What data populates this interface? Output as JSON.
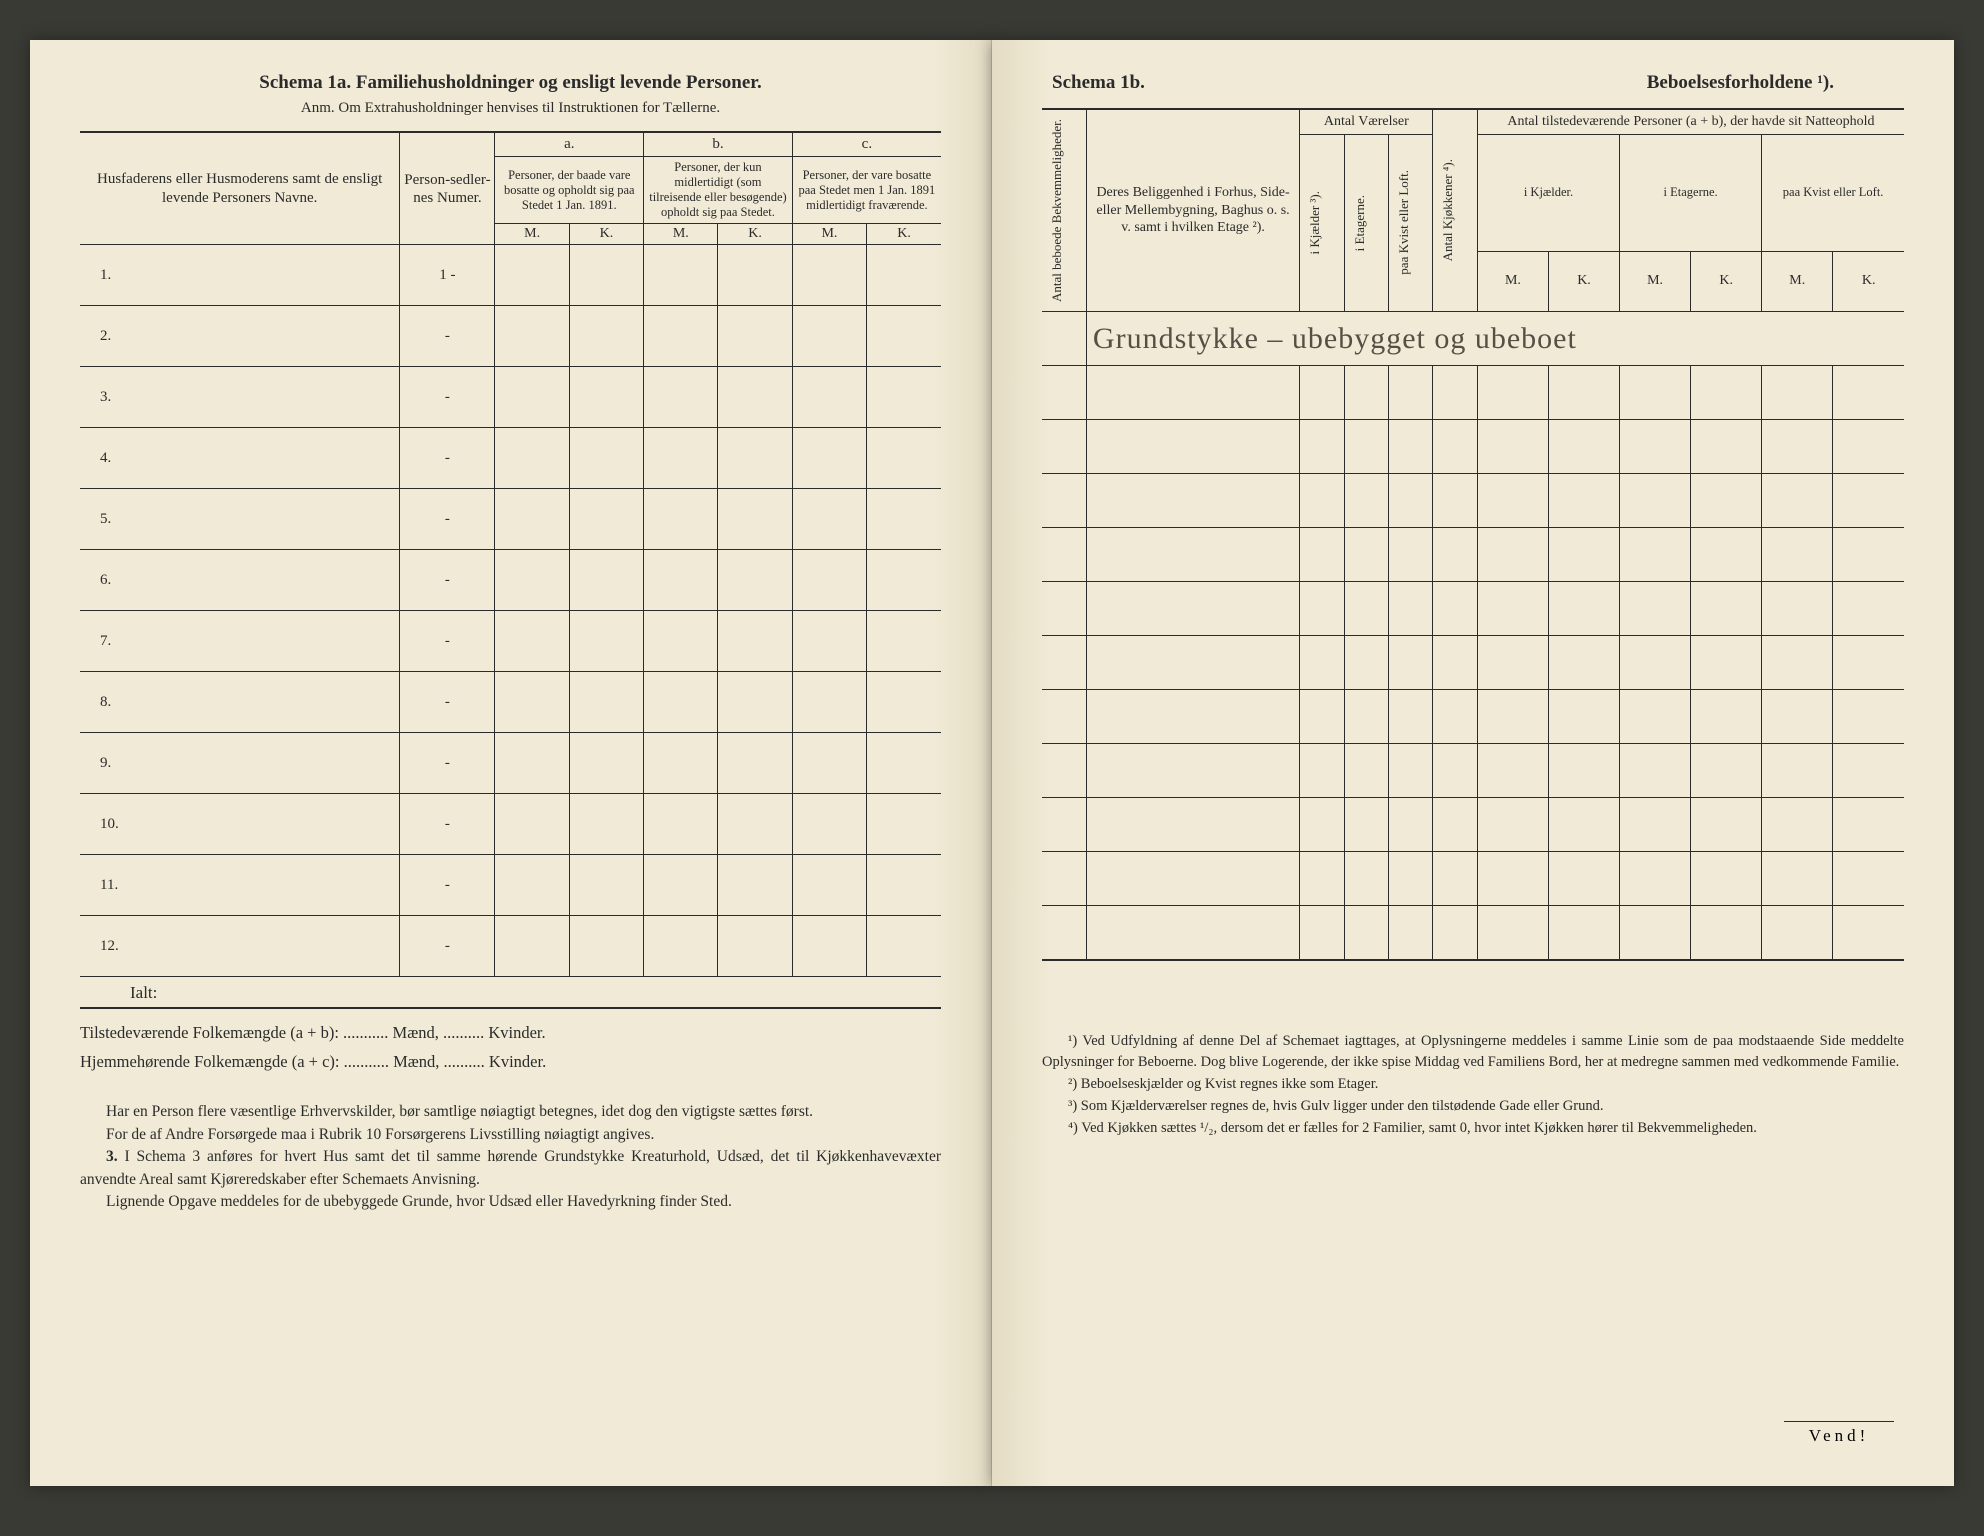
{
  "left": {
    "titleSchema": "Schema 1a.",
    "titleRest": "Familiehusholdninger og ensligt levende Personer.",
    "subtitle": "Anm. Om Extrahusholdninger henvises til Instruktionen for Tællerne.",
    "header": {
      "names": "Husfaderens eller Husmoderens samt de ensligt levende Personers Navne.",
      "numer": "Person-sedler-nes Numer.",
      "a": "a.",
      "b": "b.",
      "c": "c.",
      "atext": "Personer, der baade vare bosatte og opholdt sig paa Stedet 1 Jan. 1891.",
      "btext": "Personer, der kun midlertidigt (som tilreisende eller besøgende) opholdt sig paa Stedet.",
      "ctext": "Personer, der vare bosatte paa Stedet men 1 Jan. 1891 midlertidigt fraværende.",
      "m": "M.",
      "k": "K."
    },
    "rows": [
      "1.",
      "2.",
      "3.",
      "4.",
      "5.",
      "6.",
      "7.",
      "8.",
      "9.",
      "10.",
      "11.",
      "12."
    ],
    "numerVals": [
      "1 -",
      "-",
      "-",
      "-",
      "-",
      "-",
      "-",
      "-",
      "-",
      "-",
      "-",
      "-"
    ],
    "ialt": "Ialt:",
    "sum1": "Tilstedeværende Folkemængde (a + b): ........... Mænd, .......... Kvinder.",
    "sum2": "Hjemmehørende Folkemængde (a + c): ........... Mænd, .......... Kvinder.",
    "para1": "Har en Person flere væsentlige Erhvervskilder, bør samtlige nøiagtigt betegnes, idet dog den vigtigste sættes først.",
    "para2": "For de af Andre Forsørgede maa i Rubrik 10 Forsørgerens Livsstilling nøiagtigt angives.",
    "para3num": "3.",
    "para3": "I Schema 3 anføres for hvert Hus samt det til samme hørende Grundstykke Kreaturhold, Udsæd, det til Kjøkkenhavevæxter anvendte Areal samt Kjøreredskaber efter Schemaets Anvisning.",
    "para4": "Lignende Opgave meddeles for de ubebyggede Grunde, hvor Udsæd eller Havedyrkning finder Sted."
  },
  "right": {
    "titleLeft": "Schema 1b.",
    "titleRight": "Beboelsesforholdene ¹).",
    "header": {
      "vcol1": "Antal beboede Bekvemmeligheder.",
      "belig": "Deres Beliggenhed i Forhus, Side- eller Mellembygning, Baghus o. s. v. samt i hvilken Etage ²).",
      "vaerelser": "Antal Værelser",
      "vkj": "i Kjælder ³).",
      "vet": "i Etagerne.",
      "vloft": "paa Kvist eller Loft.",
      "kjokken": "Antal Kjøkkener ⁴).",
      "tilstede": "Antal tilstedeværende Personer (a + b), der havde sit Natteophold",
      "nkj": "i Kjælder.",
      "net": "i Etagerne.",
      "nloft": "paa Kvist eller Loft.",
      "m": "M.",
      "k": "K."
    },
    "handwriting": "Grundstykke – ubebygget og ubeboet",
    "fn1": "¹) Ved Udfyldning af denne Del af Schemaet iagttages, at Oplysningerne meddeles i samme Linie som de paa modstaaende Side meddelte Oplysninger for Beboerne. Dog blive Logerende, der ikke spise Middag ved Familiens Bord, her at medregne sammen med vedkommende Familie.",
    "fn2": "²) Beboelseskjælder og Kvist regnes ikke som Etager.",
    "fn3": "³) Som Kjælderværelser regnes de, hvis Gulv ligger under den tilstødende Gade eller Grund.",
    "fn4": "⁴) Ved Kjøkken sættes ¹/₂, dersom det er fælles for 2 Familier, samt 0, hvor intet Kjøkken hører til Bekvemmeligheden.",
    "vend": "Vend!"
  }
}
